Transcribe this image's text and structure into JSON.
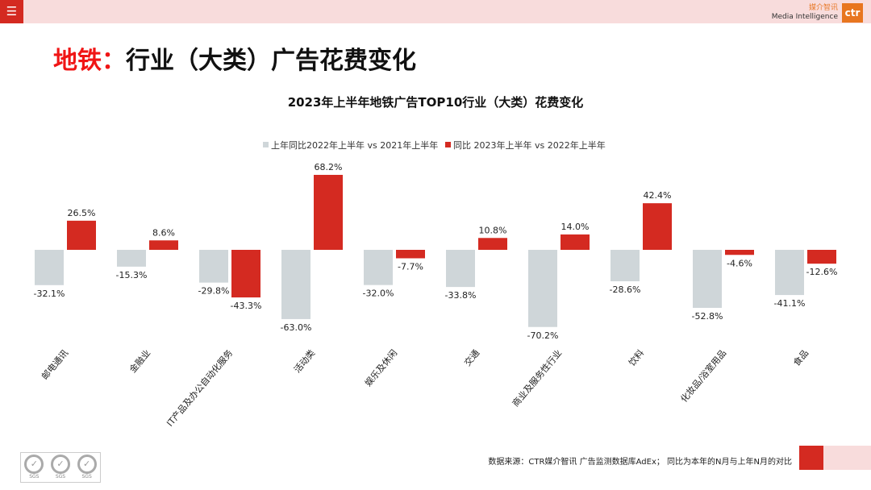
{
  "header": {
    "menu_icon": "hamburger-icon",
    "logo_cn": "媒介智讯",
    "logo_en": "Media Intelligence",
    "logo_mark": "ctr"
  },
  "title": {
    "highlight": "地铁：",
    "rest": "行业（大类）广告花费变化"
  },
  "chart_data": {
    "type": "bar",
    "title": "2023年上半年地铁广告TOP10行业（大类）花费变化",
    "categories": [
      "邮电通讯",
      "金融业",
      "IT产品及办公自动化服务",
      "活动类",
      "娱乐及休闲",
      "交通",
      "商业及服务性行业",
      "饮料",
      "化妆品/浴室用品",
      "食品"
    ],
    "series": [
      {
        "name": "上年同比2022年上半年  vs 2021年上半年",
        "color": "#cfd6d9",
        "values": [
          -32.1,
          -15.3,
          -29.8,
          -63.0,
          -32.0,
          -33.8,
          -70.2,
          -28.6,
          -52.8,
          -41.1
        ]
      },
      {
        "name": "同比 2023年上半年  vs 2022年上半年",
        "color": "#d42a21",
        "values": [
          26.5,
          8.6,
          -43.3,
          68.2,
          -7.7,
          10.8,
          14.0,
          42.4,
          -4.6,
          -12.6
        ]
      }
    ],
    "unit": "%",
    "legend": "top",
    "grid": false
  },
  "footer": {
    "source": "数据来源：CTR媒介智讯 广告监测数据库AdEx；  同比为本年的N月与上年N月的对比",
    "cert_label": "SGS"
  }
}
